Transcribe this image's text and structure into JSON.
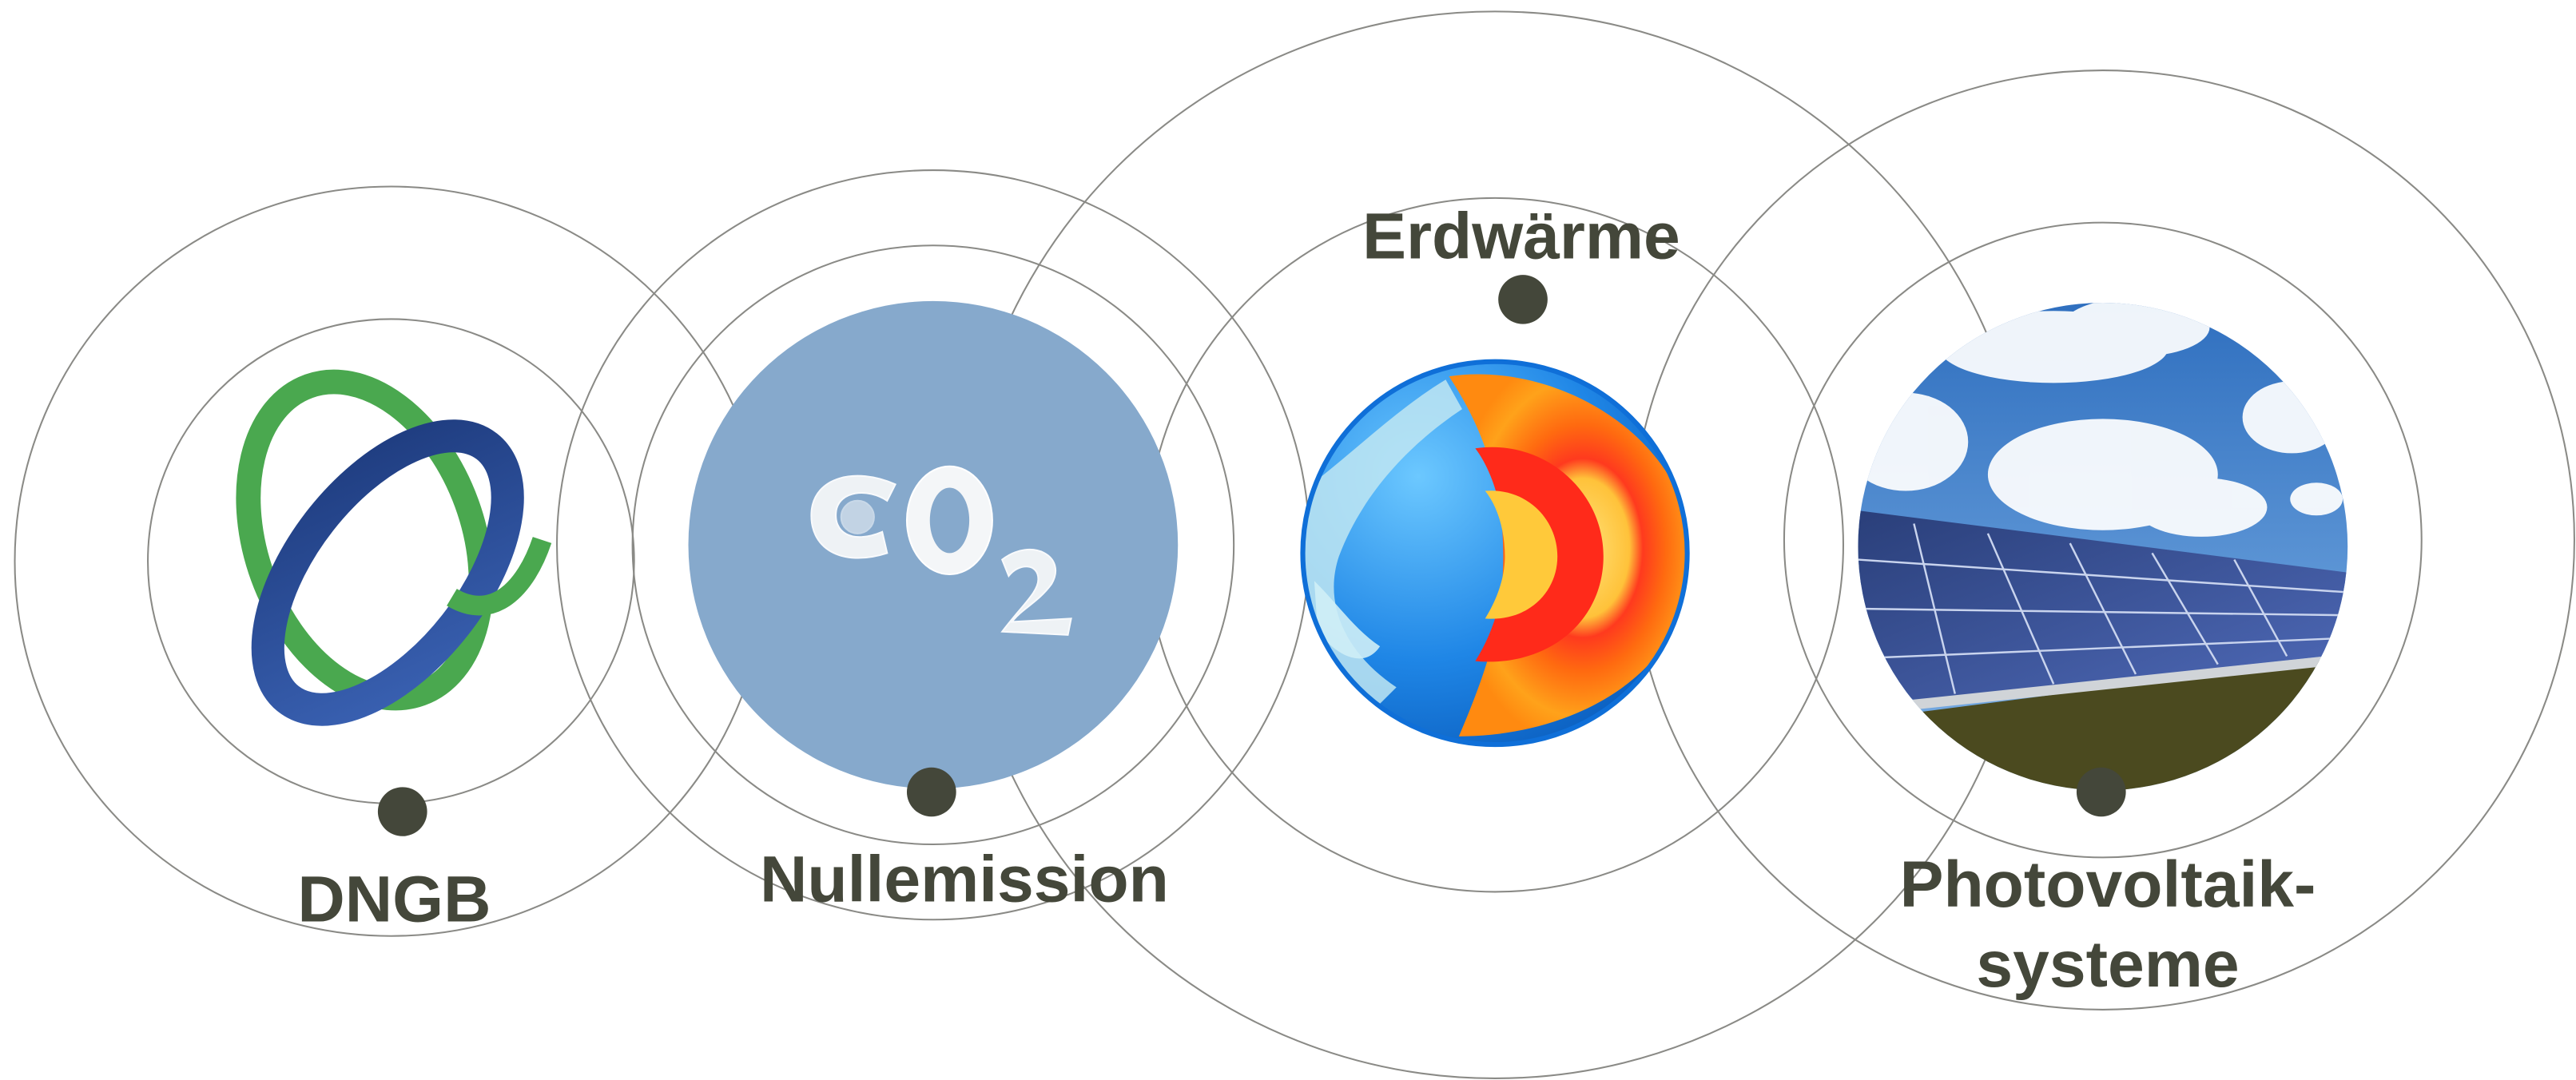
{
  "diagram": {
    "items": [
      {
        "id": "dngb",
        "label_lines": [
          "DNGB"
        ],
        "image": "dngb-logo"
      },
      {
        "id": "nullemission",
        "label_lines": [
          "Nullemission"
        ],
        "image": "co2-cloud-sky"
      },
      {
        "id": "erdwaerme",
        "label_lines": [
          "Erdwärme"
        ],
        "image": "earth-core-cross-section"
      },
      {
        "id": "photovoltaik",
        "label_lines": [
          "Photovoltaik-",
          "systeme"
        ],
        "image": "solar-panels-field"
      }
    ],
    "colors": {
      "label": "#44473a",
      "dot": "#44473a",
      "ring": "#8a8a86",
      "sky_blue": "#86a9cc",
      "logo_green": "#4aa84f",
      "logo_blue": "#2c4b94"
    }
  }
}
